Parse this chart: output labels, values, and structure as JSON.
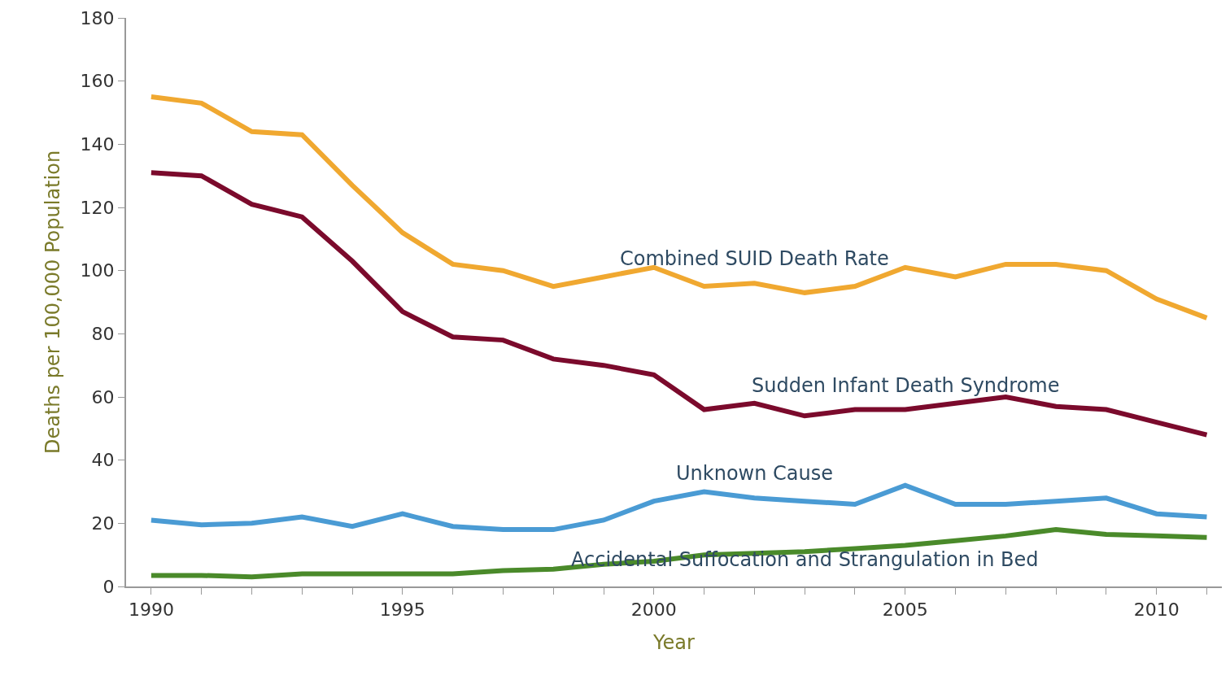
{
  "chart_data": {
    "type": "line",
    "xlabel": "Year",
    "ylabel": "Deaths per 100,000 Population",
    "x": [
      1990,
      1991,
      1992,
      1993,
      1994,
      1995,
      1996,
      1997,
      1998,
      1999,
      2000,
      2001,
      2002,
      2003,
      2004,
      2005,
      2006,
      2007,
      2008,
      2009,
      2010,
      2011
    ],
    "series": [
      {
        "name": "Combined SUID Death Rate",
        "color": "#f0a830",
        "values": [
          155,
          153,
          144,
          143,
          127,
          112,
          102,
          100,
          95,
          98,
          101,
          95,
          96,
          93,
          95,
          101,
          98,
          102,
          102,
          100,
          91,
          85
        ]
      },
      {
        "name": "Sudden Infant Death Syndrome",
        "color": "#7b0a2c",
        "values": [
          131,
          130,
          121,
          117,
          103,
          87,
          79,
          78,
          72,
          70,
          67,
          56,
          58,
          54,
          56,
          56,
          58,
          60,
          57,
          56,
          52,
          48
        ]
      },
      {
        "name": "Unknown Cause",
        "color": "#4a9bd4",
        "values": [
          21,
          19.5,
          20,
          22,
          19,
          23,
          19,
          18,
          18,
          21,
          27,
          30,
          28,
          27,
          26,
          32,
          26,
          26,
          27,
          28,
          23,
          22
        ]
      },
      {
        "name": "Accidental Suffocation and Strangulation in Bed",
        "color": "#4a8a2a",
        "values": [
          3.5,
          3.5,
          3,
          4,
          4,
          4,
          4,
          5,
          5.5,
          7,
          8,
          10,
          10.5,
          11,
          12,
          13,
          14.5,
          16,
          18,
          16.5,
          16,
          15.5
        ]
      }
    ],
    "xlim": [
      1989.5,
      2011.3
    ],
    "xticks": [
      1990,
      {
        "value": 1991,
        "label": null
      },
      {
        "value": 1992,
        "label": null
      },
      {
        "value": 1993,
        "label": null
      },
      {
        "value": 1994,
        "label": null
      },
      1995,
      {
        "value": 1996,
        "label": null
      },
      {
        "value": 1997,
        "label": null
      },
      {
        "value": 1998,
        "label": null
      },
      {
        "value": 1999,
        "label": null
      },
      2000,
      {
        "value": 2001,
        "label": null
      },
      {
        "value": 2002,
        "label": null
      },
      {
        "value": 2003,
        "label": null
      },
      {
        "value": 2004,
        "label": null
      },
      2005,
      {
        "value": 2006,
        "label": null
      },
      {
        "value": 2007,
        "label": null
      },
      {
        "value": 2008,
        "label": null
      },
      {
        "value": 2009,
        "label": null
      },
      2010,
      {
        "value": 2011,
        "label": null
      }
    ],
    "ylim": [
      0,
      180
    ],
    "yticks": [
      0,
      20,
      40,
      60,
      80,
      100,
      120,
      140,
      160,
      180
    ],
    "grid": false,
    "legend": false,
    "marker": "none",
    "line_style": "solid"
  }
}
